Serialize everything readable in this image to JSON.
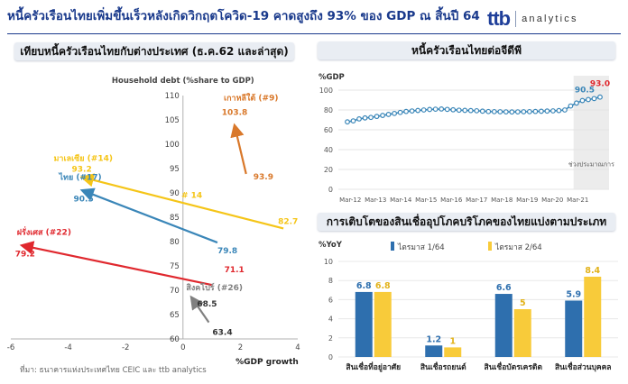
{
  "header": {
    "title": "หนี้ครัวเรือนไทยเพิ่มขึ้นเร็วหลังเกิดวิกฤตโควิด-19 คาดสูงถึง 93% ของ GDP ณ สิ้นปี 64",
    "logo_ttb": "ttb",
    "logo_analytics": "analytics"
  },
  "left_panel": {
    "heading": "เทียบหนี้ครัวเรือนไทยกับต่างประเทศ (ธ.ค.62 และล่าสุด)",
    "source": "ที่มา: ธนาคารแห่งประเทศไทย CEIC และ ttb analytics"
  },
  "right_top_panel": {
    "heading": "หนี้ครัวเรือนไทยต่อจีดีพี",
    "shaded_label": "ช่วงประมาณการ"
  },
  "right_bottom_panel": {
    "heading": "การเติบโตของสินเชื่ออุปโภคบริโภคของไทยแบ่งตามประเภท"
  },
  "chart_data": [
    {
      "type": "scatter",
      "title": "",
      "xlabel": "%GDP growth",
      "ylabel": "Household debt (%share to GDP)",
      "xlim": [
        -6,
        4
      ],
      "ylim": [
        60,
        110
      ],
      "xticks": [
        -6,
        -4,
        -2,
        0,
        2,
        4
      ],
      "yticks": [
        60,
        65,
        70,
        75,
        80,
        85,
        90,
        95,
        100,
        105,
        110
      ],
      "series": [
        {
          "name": "เกาหลีใต้ (#9)",
          "color": "#d9782a",
          "from": {
            "x": 2.2,
            "y": 93.9,
            "label": "93.9"
          },
          "to": {
            "x": 1.8,
            "y": 103.8,
            "label": "103.8"
          }
        },
        {
          "name": "มาเลเซีย (#14)",
          "color": "#f5c518",
          "from": {
            "x": 3.5,
            "y": 82.7,
            "label": "82.7"
          },
          "to": {
            "x": -3.5,
            "y": 93.2,
            "label": "93.2"
          },
          "mid_label": "# 14"
        },
        {
          "name": "ไทย (#17)",
          "color": "#3a86b8",
          "from": {
            "x": 1.2,
            "y": 79.8,
            "label": "79.8"
          },
          "to": {
            "x": -3.5,
            "y": 90.5,
            "label": "90.5"
          }
        },
        {
          "name": "ฝรั่งเศส (#22)",
          "color": "#e0282e",
          "from": {
            "x": 1.0,
            "y": 71.1,
            "label": "71.1"
          },
          "to": {
            "x": -5.6,
            "y": 79.2,
            "label": "79.2"
          }
        },
        {
          "name": "สิงคโปร์ (#26)",
          "color": "#808080",
          "from": {
            "x": 0.9,
            "y": 63.4,
            "label": "63.4"
          },
          "to": {
            "x": 0.3,
            "y": 68.5,
            "label": "68.5"
          }
        }
      ]
    },
    {
      "type": "line",
      "title": "",
      "ylabel": "%GDP",
      "ylim": [
        0,
        100
      ],
      "yticks": [
        0,
        20,
        40,
        60,
        80,
        100
      ],
      "x_tick_labels": [
        "Mar-12",
        "Mar-13",
        "Mar-14",
        "Mar-15",
        "Mar-16",
        "Mar-17",
        "Mar-18",
        "Mar-19",
        "Mar-20",
        "Mar-21"
      ],
      "series": [
        {
          "name": "",
          "color": "#3a86b8",
          "values": [
            68,
            69,
            71,
            72,
            72.5,
            73.5,
            74.5,
            75.5,
            76.5,
            77.5,
            78.5,
            79,
            79.5,
            80,
            80.5,
            80.8,
            81,
            80.6,
            80.2,
            79.8,
            79.6,
            79.4,
            79.2,
            78.8,
            78.4,
            78.3,
            78.2,
            78.1,
            78,
            78.1,
            78.2,
            78.3,
            78.5,
            78.7,
            78.9,
            79.1,
            79.4,
            80,
            84,
            87,
            89.5,
            90.5,
            91.5,
            93
          ]
        }
      ],
      "annotations": [
        {
          "label": "90.5",
          "color": "#3a86b8",
          "index": 41
        },
        {
          "label": "93.0",
          "color": "#e0282e",
          "index": 43
        }
      ]
    },
    {
      "type": "bar",
      "title": "",
      "ylabel": "%YoY",
      "ylim": [
        0,
        10
      ],
      "yticks": [
        0,
        2,
        4,
        6,
        8,
        10
      ],
      "categories": [
        "สินเชื่อที่อยู่อาศัย",
        "สินเชื่อรถยนต์",
        "สินเชื่อบัตรเครดิต",
        "สินเชื่อส่วนบุคคล"
      ],
      "series": [
        {
          "name": "ไตรมาส 1/64",
          "color": "#2e6fae",
          "values": [
            6.8,
            1.2,
            6.6,
            5.9
          ],
          "labels": [
            "6.8",
            "1.2",
            "6.6",
            "5.9"
          ]
        },
        {
          "name": "ไตรมาส 2/64",
          "color": "#f8cb3a",
          "values": [
            6.8,
            1.0,
            5.0,
            8.4
          ],
          "labels": [
            "6.8",
            "1",
            "5",
            "8.4"
          ]
        }
      ],
      "legend": "top"
    }
  ]
}
